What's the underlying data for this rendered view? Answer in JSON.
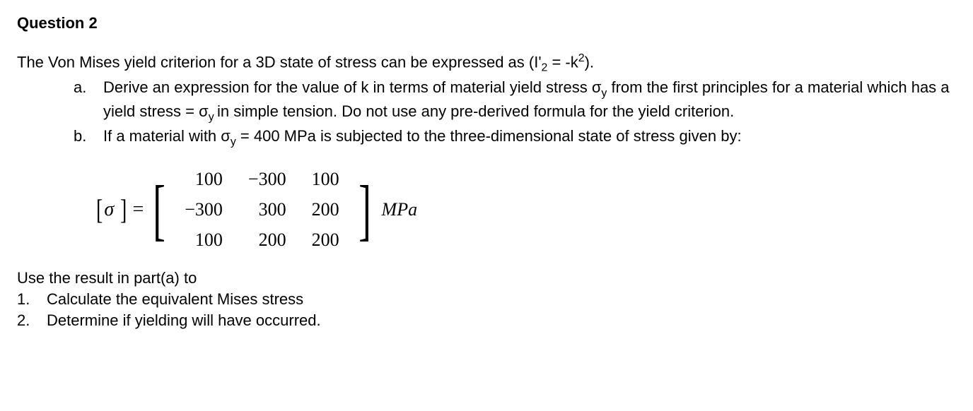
{
  "heading": "Question 2",
  "intro_pre": "The Von Mises yield criterion for a 3D state of stress can be expressed as (I'",
  "intro_sub": "2",
  "intro_mid": " = -k",
  "intro_sup": "2",
  "intro_post": ").",
  "parts": {
    "a": {
      "marker": "a.",
      "text_pre": "Derive an expression for the value of  k in terms of material yield stress σ",
      "text_sub1": "y",
      "text_mid1": " from the first principles for a material which has a yield stress = σ",
      "text_sub2": "y ",
      "text_post": "in simple tension. Do not use any pre-derived formula for the yield criterion."
    },
    "b": {
      "marker": "b.",
      "text_pre": "If a material with σ",
      "text_sub": "y",
      "text_post": " = 400 MPa is subjected to the three-dimensional state of stress given by:"
    }
  },
  "matrix": {
    "lhs_open": "[",
    "lhs_sym": "σ",
    "lhs_close": "]",
    "eq": "=",
    "rows": [
      [
        "100",
        "−300",
        "100"
      ],
      [
        "−300",
        "300",
        "200"
      ],
      [
        "100",
        "200",
        "200"
      ]
    ],
    "unit": "MPa"
  },
  "footer_intro": "Use the result in part(a) to",
  "footer_items": {
    "one": {
      "marker": "1.",
      "text": "Calculate the equivalent Mises stress"
    },
    "two": {
      "marker": "2.",
      "text": "Determine if yielding will have occurred."
    }
  }
}
